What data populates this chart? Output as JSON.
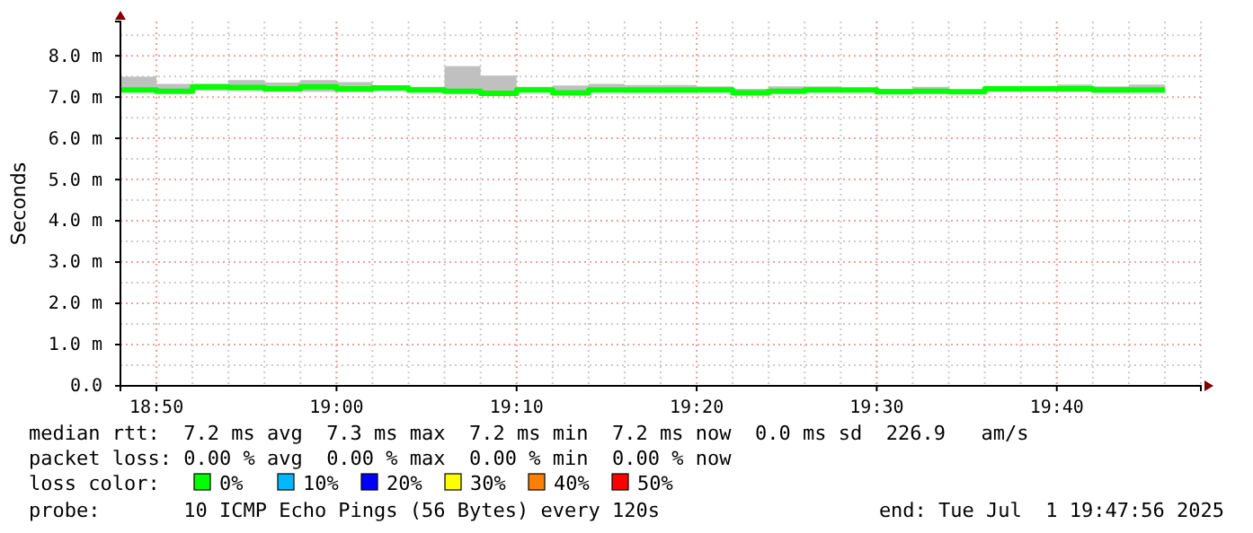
{
  "chart_data": {
    "type": "step",
    "ylabel": "Seconds",
    "x": [
      "2025-07-01T18:48",
      "2025-07-01T18:50",
      "2025-07-01T18:52",
      "2025-07-01T18:54",
      "2025-07-01T18:56",
      "2025-07-01T18:58",
      "2025-07-01T19:00",
      "2025-07-01T19:02",
      "2025-07-01T19:04",
      "2025-07-01T19:06",
      "2025-07-01T19:08",
      "2025-07-01T19:10",
      "2025-07-01T19:12",
      "2025-07-01T19:14",
      "2025-07-01T19:16",
      "2025-07-01T19:18",
      "2025-07-01T19:20",
      "2025-07-01T19:22",
      "2025-07-01T19:24",
      "2025-07-01T19:26",
      "2025-07-01T19:28",
      "2025-07-01T19:30",
      "2025-07-01T19:32",
      "2025-07-01T19:34",
      "2025-07-01T19:36",
      "2025-07-01T19:38",
      "2025-07-01T19:40",
      "2025-07-01T19:42",
      "2025-07-01T19:44",
      "2025-07-01T19:46"
    ],
    "series": [
      {
        "color": "#00ff00",
        "values": [
          7.17,
          7.14,
          7.25,
          7.23,
          7.2,
          7.25,
          7.2,
          7.22,
          7.17,
          7.14,
          7.09,
          7.17,
          7.1,
          7.17,
          7.17,
          7.17,
          7.17,
          7.1,
          7.14,
          7.17,
          7.17,
          7.13,
          7.14,
          7.13,
          7.2,
          7.2,
          7.2,
          7.17,
          7.17,
          7.17
        ],
        "lower": [
          7.12,
          7.1,
          7.15,
          7.15,
          7.15,
          7.13,
          7.12,
          7.15,
          7.12,
          7.1,
          7.05,
          7.13,
          7.08,
          7.12,
          7.1,
          7.1,
          7.12,
          7.08,
          7.1,
          7.12,
          7.13,
          7.1,
          7.1,
          7.1,
          7.15,
          7.15,
          7.13,
          7.1,
          7.12,
          7.12
        ],
        "upper": [
          7.49,
          7.32,
          7.32,
          7.41,
          7.35,
          7.41,
          7.36,
          7.25,
          7.25,
          7.75,
          7.52,
          7.25,
          7.28,
          7.32,
          7.29,
          7.29,
          7.26,
          7.2,
          7.26,
          7.26,
          7.2,
          7.2,
          7.25,
          7.17,
          7.25,
          7.26,
          7.3,
          7.26,
          7.3,
          7.3
        ]
      }
    ],
    "xlim": [
      "2025-07-01T18:48",
      "2025-07-01T19:48"
    ],
    "xticks": [
      {
        "value": "2025-07-01T18:50",
        "label": "18:50"
      },
      {
        "value": "2025-07-01T19:00",
        "label": "19:00"
      },
      {
        "value": "2025-07-01T19:10",
        "label": "19:10"
      },
      {
        "value": "2025-07-01T19:20",
        "label": "19:20"
      },
      {
        "value": "2025-07-01T19:30",
        "label": "19:30"
      },
      {
        "value": "2025-07-01T19:40",
        "label": "19:40"
      }
    ],
    "ylim": [
      0,
      8.83
    ],
    "yticks": [
      {
        "value": 0,
        "label": "0.0"
      },
      {
        "value": 1,
        "label": "1.0 m"
      },
      {
        "value": 2,
        "label": "2.0 m"
      },
      {
        "value": 3,
        "label": "3.0 m"
      },
      {
        "value": 4,
        "label": "4.0 m"
      },
      {
        "value": 5,
        "label": "5.0 m"
      },
      {
        "value": 6,
        "label": "6.0 m"
      },
      {
        "value": 7,
        "label": "7.0 m"
      },
      {
        "value": 8,
        "label": "8.0 m"
      }
    ],
    "grid": true,
    "annotations": [
      "median rtt:  7.2 ms avg  7.3 ms max  7.2 ms min  7.2 ms now  0.0 ms sd  226.9   am/s",
      "packet loss: 0.00 % avg  0.00 % max  0.00 % min  0.00 % now",
      "loss color:",
      "0%",
      "10%",
      "20%",
      "30%",
      "40%",
      "50%",
      "probe:       10 ICMP Echo Pings (56 Bytes) every 120s",
      "end: Tue Jul  1 19:47:56 2025"
    ]
  }
}
